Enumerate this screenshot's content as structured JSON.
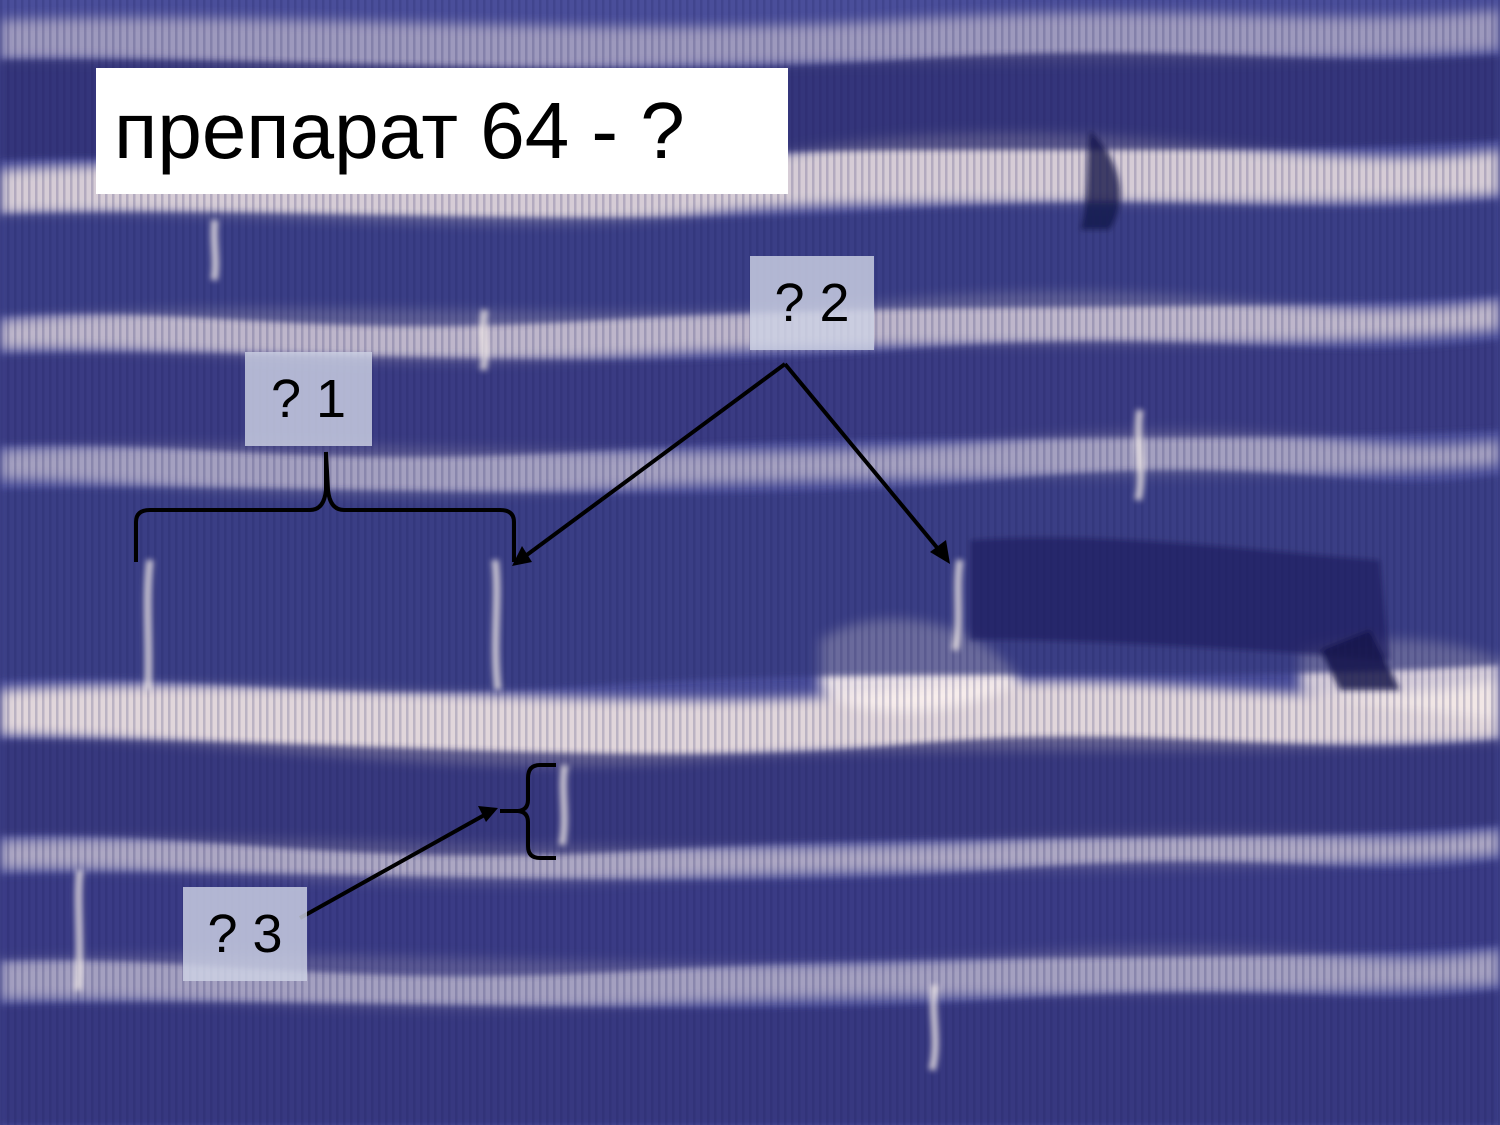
{
  "title": "препарат 64 - ?",
  "labels": {
    "label_1": "? 1",
    "label_2": "? 2",
    "label_3": "? 3"
  },
  "colors": {
    "stain_dark": "#2a2a6e",
    "stain_mid": "#4b4f9c",
    "stain_light": "#7e84c4",
    "background_light": "#efe3e0",
    "annotation_line": "#000000",
    "label_box": "#cdd2e4",
    "title_box": "#ffffff"
  }
}
